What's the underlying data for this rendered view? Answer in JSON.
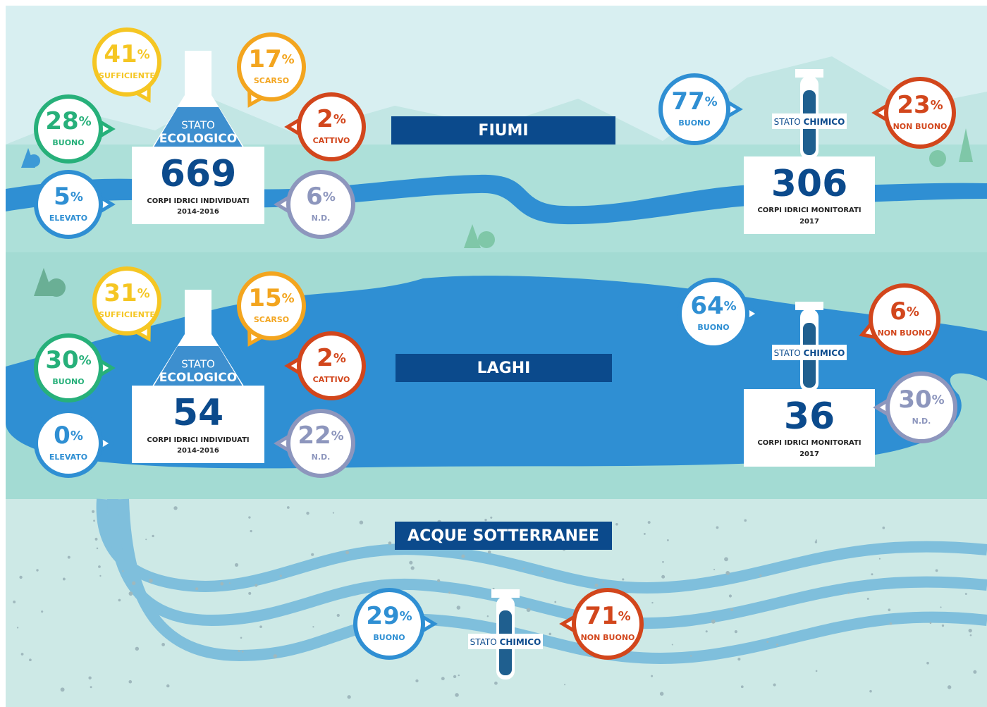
{
  "sections": [
    {
      "title": "FIUMI",
      "ecological": {
        "label_top": "STATO",
        "label_bottom": "ECOLOGICO",
        "count": 669,
        "caption": "CORPI IDRICI INDIVIDUATI",
        "period": "2014-2016",
        "bubbles": [
          {
            "value": 41,
            "unit": "%",
            "label": "SUFFICIENTE",
            "color": "#f5c623"
          },
          {
            "value": 17,
            "unit": "%",
            "label": "SCARSO",
            "color": "#f3a51f"
          },
          {
            "value": 28,
            "unit": "%",
            "label": "BUONO",
            "color": "#27b07a"
          },
          {
            "value": 2,
            "unit": "%",
            "label": "CATTIVO",
            "color": "#d2461c"
          },
          {
            "value": 5,
            "unit": "%",
            "label": "ELEVATO",
            "color": "#2f8fd3"
          },
          {
            "value": 6,
            "unit": "%",
            "label": "N.D.",
            "color": "#8d96bd"
          }
        ]
      },
      "chemical": {
        "label_top": "STATO",
        "label_bottom": "CHIMICO",
        "count": 306,
        "caption": "CORPI IDRICI MONITORATI",
        "period": "2017",
        "bubbles": [
          {
            "value": 77,
            "unit": "%",
            "label": "BUONO",
            "color": "#2f8fd3"
          },
          {
            "value": 23,
            "unit": "%",
            "label": "NON BUONO",
            "color": "#d2461c"
          }
        ]
      }
    },
    {
      "title": "LAGHI",
      "ecological": {
        "label_top": "STATO",
        "label_bottom": "ECOLOGICO",
        "count": 54,
        "caption": "CORPI IDRICI INDIVIDUATI",
        "period": "2014-2016",
        "bubbles": [
          {
            "value": 31,
            "unit": "%",
            "label": "SUFFICIENTE",
            "color": "#f5c623"
          },
          {
            "value": 15,
            "unit": "%",
            "label": "SCARSO",
            "color": "#f3a51f"
          },
          {
            "value": 30,
            "unit": "%",
            "label": "BUONO",
            "color": "#27b07a"
          },
          {
            "value": 2,
            "unit": "%",
            "label": "CATTIVO",
            "color": "#d2461c"
          },
          {
            "value": 0,
            "unit": "%",
            "label": "ELEVATO",
            "color": "#2f8fd3"
          },
          {
            "value": 22,
            "unit": "%",
            "label": "N.D.",
            "color": "#8d96bd"
          }
        ]
      },
      "chemical": {
        "label_top": "STATO",
        "label_bottom": "CHIMICO",
        "count": 36,
        "caption": "CORPI IDRICI MONITORATI",
        "period": "2017",
        "bubbles": [
          {
            "value": 64,
            "unit": "%",
            "label": "BUONO",
            "color": "#2f8fd3"
          },
          {
            "value": 6,
            "unit": "%",
            "label": "NON BUONO",
            "color": "#d2461c"
          },
          {
            "value": 30,
            "unit": "%",
            "label": "N.D.",
            "color": "#8d96bd"
          }
        ]
      }
    },
    {
      "title": "ACQUE SOTTERRANEE",
      "chemical": {
        "label_top": "STATO",
        "label_bottom": "CHIMICO",
        "bubbles": [
          {
            "value": 29,
            "unit": "%",
            "label": "BUONO",
            "color": "#2f8fd3"
          },
          {
            "value": 71,
            "unit": "%",
            "label": "NON BUONO",
            "color": "#d2461c"
          }
        ]
      }
    }
  ]
}
